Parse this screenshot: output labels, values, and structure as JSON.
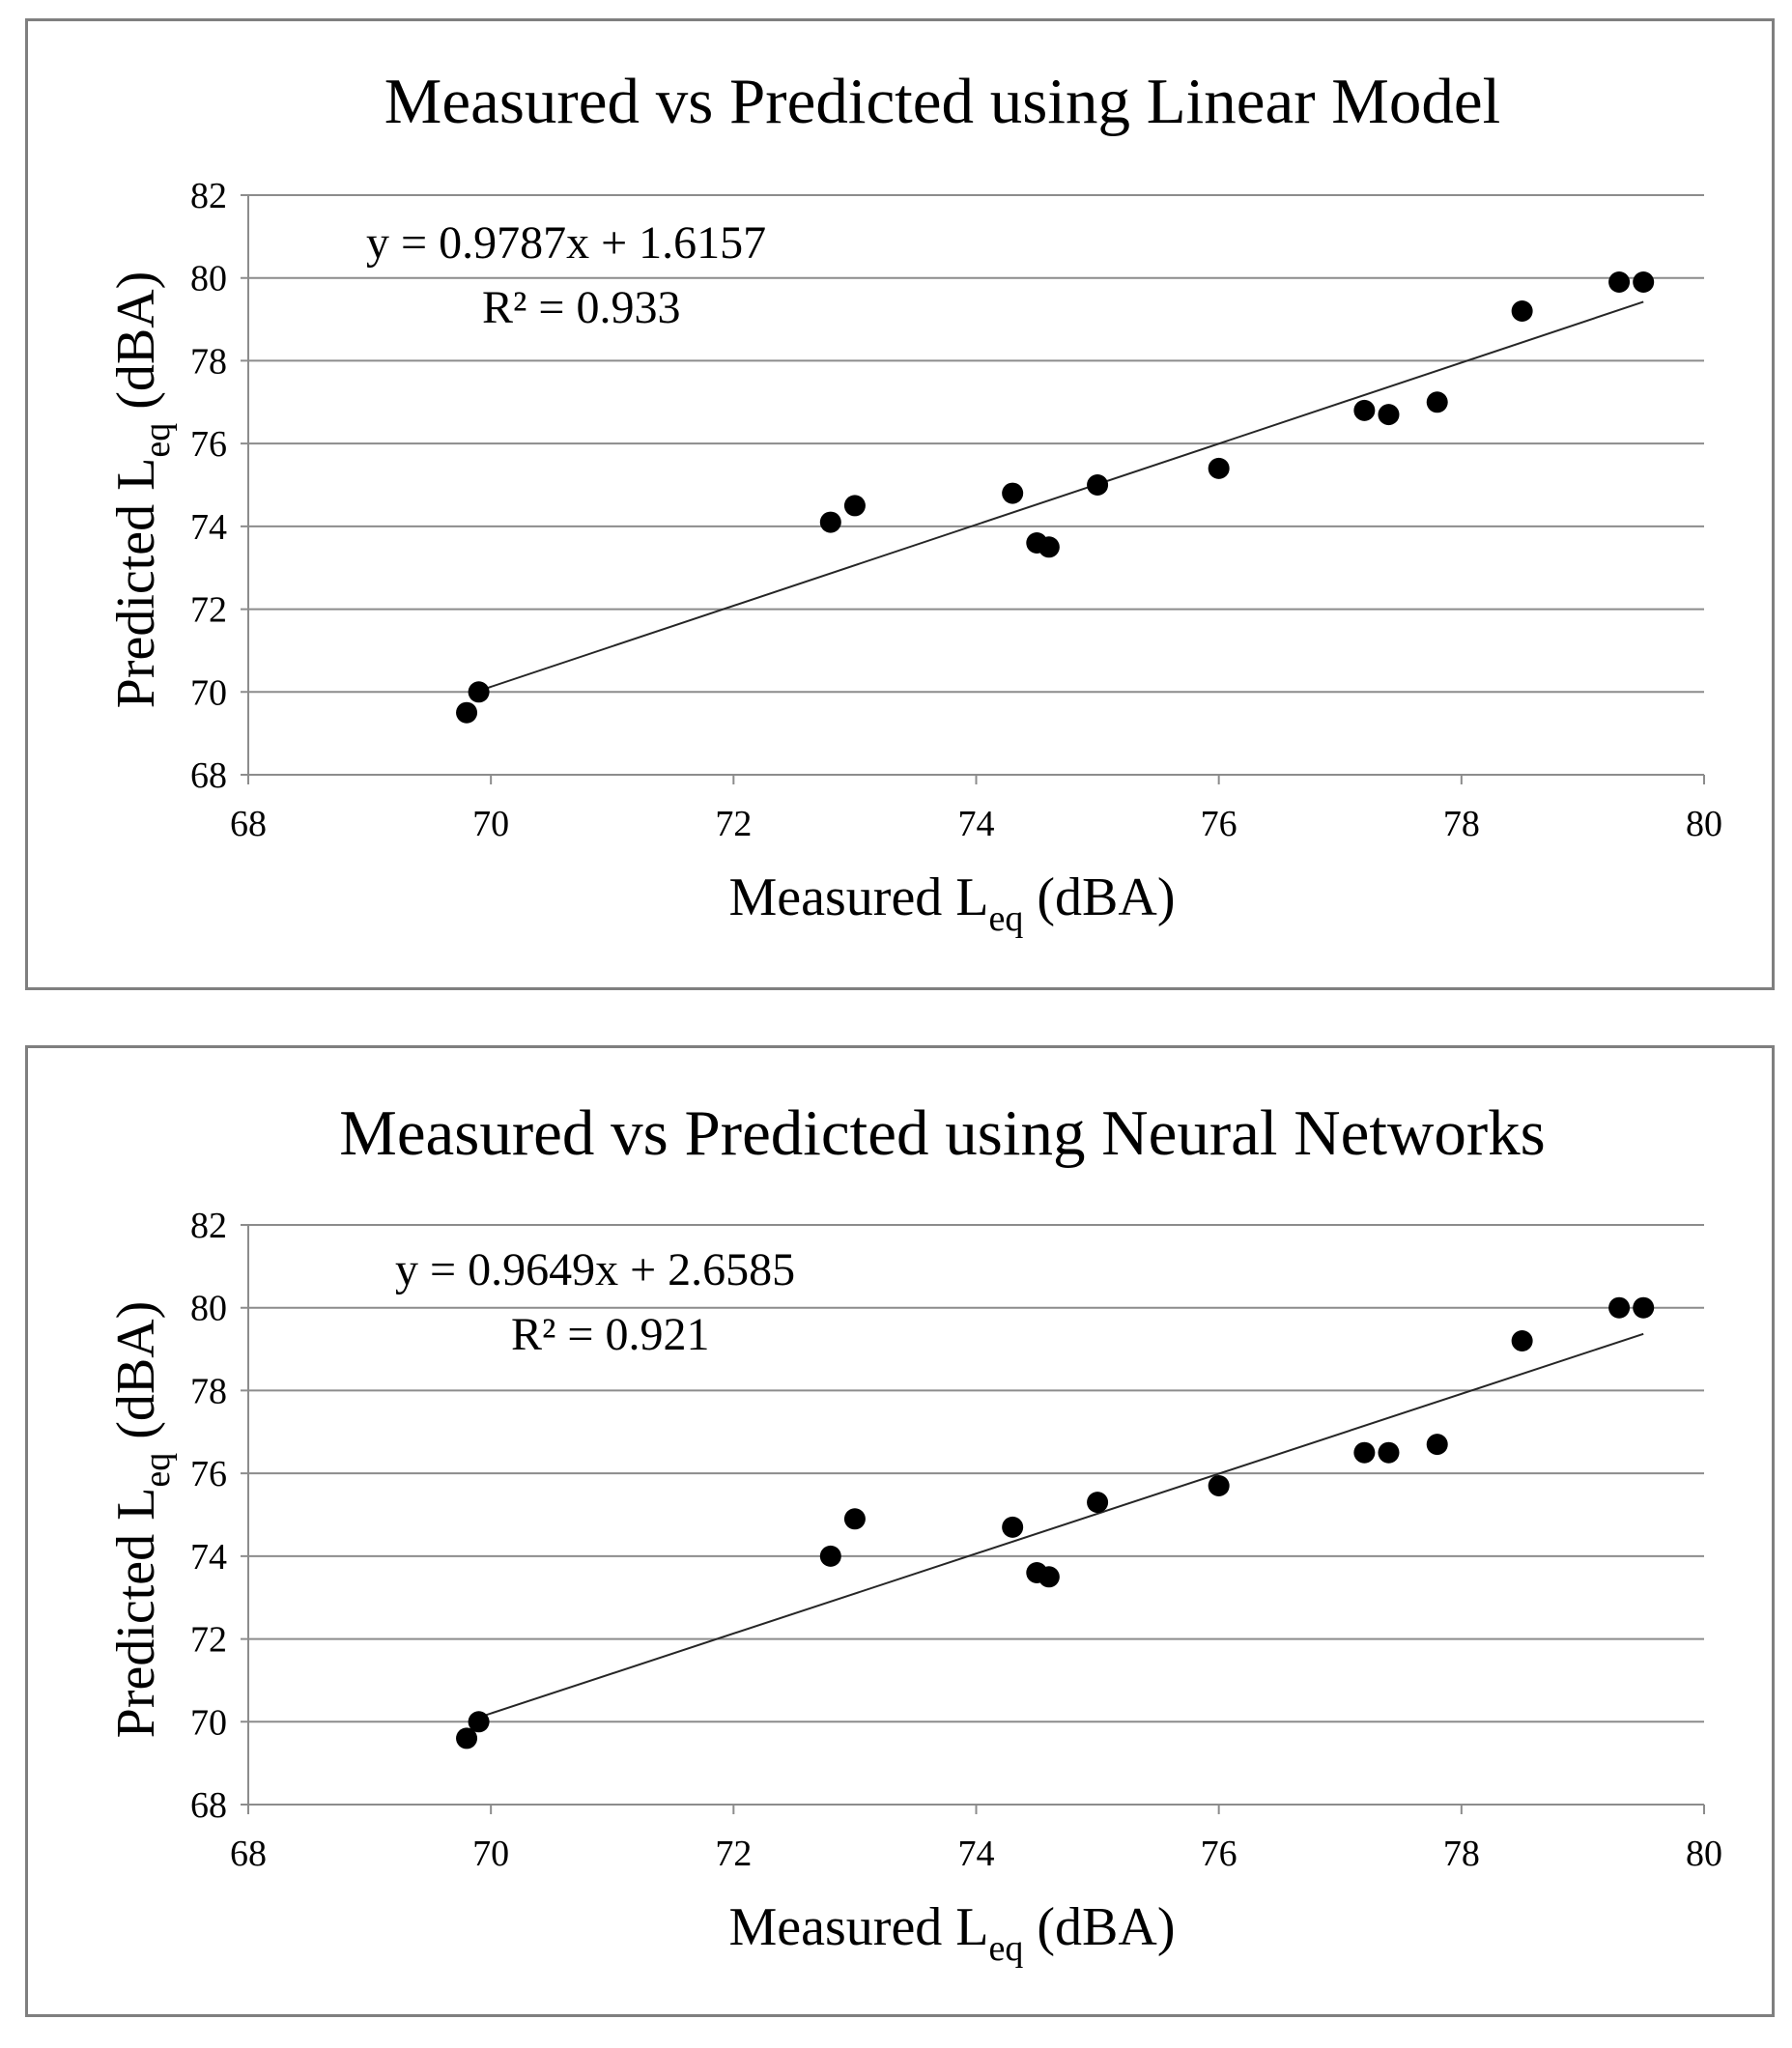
{
  "chart_data": [
    {
      "type": "scatter",
      "title": "Measured vs Predicted using Linear Model",
      "xlabel": {
        "main": "Measured L",
        "sub": "eq",
        "unit": "(dBA)"
      },
      "ylabel": {
        "main": "Predicted L",
        "sub": "eq",
        "unit": "(dBA)"
      },
      "xlim": [
        68,
        80
      ],
      "ylim": [
        68,
        82
      ],
      "xticks": [
        "68",
        "70",
        "72",
        "74",
        "76",
        "78",
        "80"
      ],
      "yticks": [
        "68",
        "70",
        "72",
        "74",
        "76",
        "78",
        "80",
        "82"
      ],
      "grid": "horizontal",
      "series": [
        {
          "name": "Predicted",
          "x": [
            69.8,
            69.9,
            72.8,
            73.0,
            74.3,
            74.5,
            74.6,
            75.0,
            76.0,
            77.2,
            77.4,
            77.8,
            78.5,
            79.3,
            79.5
          ],
          "y": [
            69.5,
            70.0,
            74.1,
            74.5,
            74.8,
            73.6,
            73.5,
            75.0,
            75.4,
            76.8,
            76.7,
            77.0,
            79.2,
            79.9,
            79.9
          ]
        }
      ],
      "trendline": {
        "slope": 0.9787,
        "intercept": 1.6157,
        "x_range": [
          69.9,
          79.5
        ],
        "equation": "y = 0.9787x + 1.6157",
        "r2_label": "R² = 0.933"
      }
    },
    {
      "type": "scatter",
      "title": "Measured vs Predicted using Neural Networks",
      "xlabel": {
        "main": "Measured L",
        "sub": "eq",
        "unit": "(dBA)"
      },
      "ylabel": {
        "main": "Predicted L",
        "sub": "eq",
        "unit": "(dBA)"
      },
      "xlim": [
        68,
        80
      ],
      "ylim": [
        68,
        82
      ],
      "xticks": [
        "68",
        "70",
        "72",
        "74",
        "76",
        "78",
        "80"
      ],
      "yticks": [
        "68",
        "70",
        "72",
        "74",
        "76",
        "78",
        "80",
        "82"
      ],
      "grid": "horizontal",
      "series": [
        {
          "name": "Predicted",
          "x": [
            69.8,
            69.9,
            72.8,
            73.0,
            74.3,
            74.5,
            74.6,
            75.0,
            76.0,
            77.2,
            77.4,
            77.8,
            78.5,
            79.3,
            79.5
          ],
          "y": [
            69.6,
            70.0,
            74.0,
            74.9,
            74.7,
            73.6,
            73.5,
            75.3,
            75.7,
            76.5,
            76.5,
            76.7,
            79.2,
            80.0,
            80.0
          ]
        }
      ],
      "trendline": {
        "slope": 0.9649,
        "intercept": 2.6585,
        "x_range": [
          69.9,
          79.5
        ],
        "equation": "y = 0.9649x + 2.6585",
        "r2_label": "R² = 0.921"
      }
    }
  ]
}
